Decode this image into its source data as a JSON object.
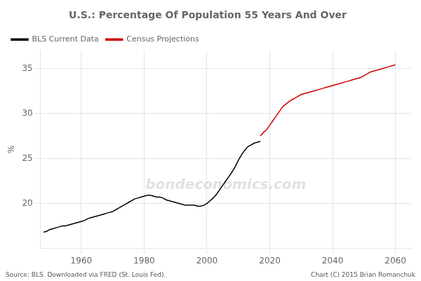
{
  "chart_data": {
    "type": "line",
    "title": "U.S.: Percentage Of Population 55 Years And Over",
    "ylabel": "%",
    "watermark": "bondeconomics.com",
    "source_text": "Source: BLS. Downloaded via FRED (St. Louis Fed).",
    "copyright_text": "Chart (C) 2015 Brian Romanchuk",
    "xlim": [
      1947,
      2065
    ],
    "ylim": [
      15,
      37
    ],
    "xticks": [
      1960,
      1980,
      2000,
      2020,
      2040,
      2060
    ],
    "yticks": [
      20,
      25,
      30,
      35
    ],
    "grid": true,
    "legend": "upper left",
    "series": [
      {
        "name": "BLS Current Data",
        "color": "#000000",
        "x": [
          1948,
          1949,
          1950,
          1951,
          1952,
          1953,
          1954,
          1955,
          1956,
          1957,
          1958,
          1959,
          1960,
          1961,
          1962,
          1963,
          1964,
          1965,
          1966,
          1967,
          1968,
          1969,
          1970,
          1971,
          1972,
          1973,
          1974,
          1975,
          1976,
          1977,
          1978,
          1979,
          1980,
          1981,
          1982,
          1983,
          1984,
          1985,
          1986,
          1987,
          1988,
          1989,
          1990,
          1991,
          1992,
          1993,
          1994,
          1995,
          1996,
          1997,
          1998,
          1999,
          2000,
          2001,
          2002,
          2003,
          2004,
          2005,
          2006,
          2007,
          2008,
          2009,
          2010,
          2011,
          2012,
          2013,
          2014,
          2015,
          2016,
          2017
        ],
        "values": [
          16.8,
          16.9,
          17.1,
          17.2,
          17.3,
          17.4,
          17.5,
          17.5,
          17.6,
          17.7,
          17.8,
          17.9,
          18.0,
          18.1,
          18.3,
          18.4,
          18.5,
          18.6,
          18.7,
          18.8,
          18.9,
          19.0,
          19.1,
          19.3,
          19.5,
          19.7,
          19.9,
          20.1,
          20.3,
          20.5,
          20.6,
          20.7,
          20.8,
          20.9,
          20.9,
          20.8,
          20.7,
          20.7,
          20.6,
          20.4,
          20.3,
          20.2,
          20.1,
          20.0,
          19.9,
          19.8,
          19.8,
          19.8,
          19.8,
          19.7,
          19.7,
          19.8,
          20.0,
          20.3,
          20.6,
          21.0,
          21.5,
          22.0,
          22.5,
          23.0,
          23.5,
          24.1,
          24.8,
          25.4,
          25.9,
          26.3,
          26.5,
          26.7,
          26.8,
          26.9
        ]
      },
      {
        "name": "Census Projections",
        "color": "#cc0000",
        "x": [
          2017,
          2018,
          2019,
          2020,
          2021,
          2022,
          2023,
          2024,
          2025,
          2026,
          2027,
          2028,
          2029,
          2030,
          2031,
          2032,
          2033,
          2034,
          2035,
          2036,
          2037,
          2038,
          2039,
          2040,
          2041,
          2042,
          2043,
          2044,
          2045,
          2046,
          2047,
          2048,
          2049,
          2050,
          2051,
          2052,
          2053,
          2054,
          2055,
          2056,
          2057,
          2058,
          2059,
          2060
        ],
        "values": [
          27.5,
          27.9,
          28.2,
          28.7,
          29.2,
          29.7,
          30.2,
          30.7,
          31.0,
          31.3,
          31.5,
          31.7,
          31.9,
          32.1,
          32.2,
          32.3,
          32.4,
          32.5,
          32.6,
          32.7,
          32.8,
          32.9,
          33.0,
          33.1,
          33.2,
          33.3,
          33.4,
          33.5,
          33.6,
          33.7,
          33.8,
          33.9,
          34.0,
          34.2,
          34.4,
          34.6,
          34.7,
          34.8,
          34.9,
          35.0,
          35.1,
          35.2,
          35.3,
          35.4
        ]
      }
    ]
  }
}
